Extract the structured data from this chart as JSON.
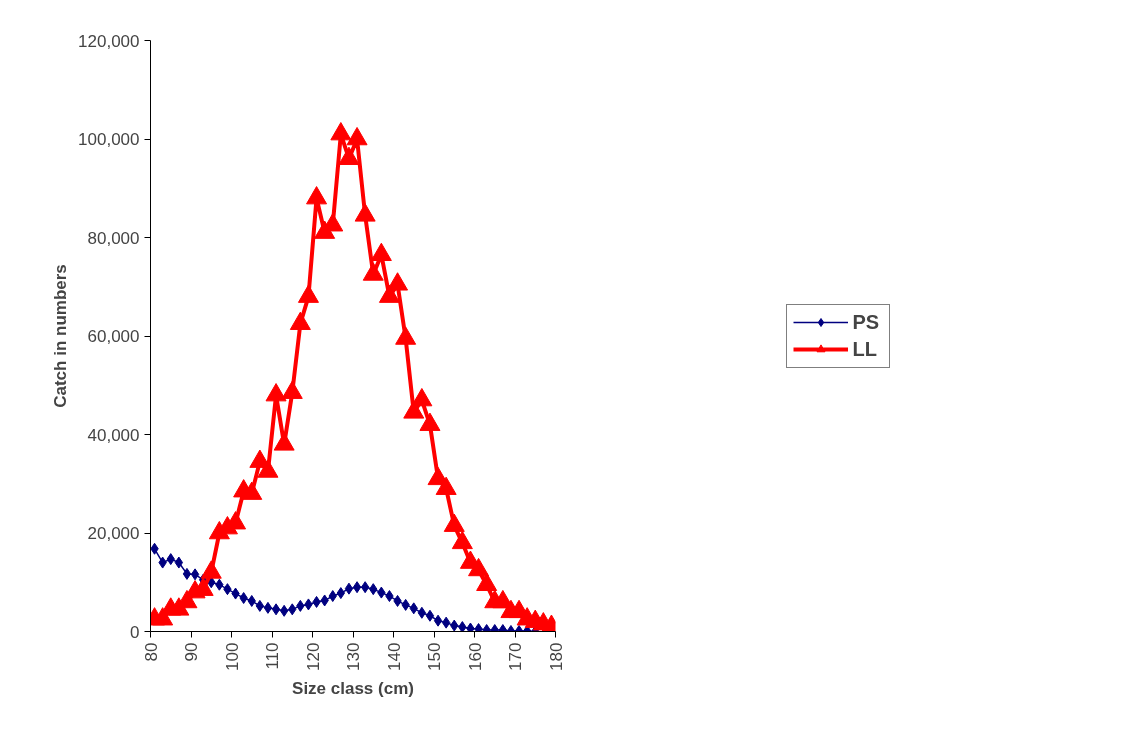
{
  "chart_data": {
    "type": "line",
    "xlabel": "Size class (cm)",
    "ylabel": "Catch in numbers",
    "x": [
      81,
      83,
      85,
      87,
      89,
      91,
      93,
      95,
      97,
      99,
      101,
      103,
      105,
      107,
      109,
      111,
      113,
      115,
      117,
      119,
      121,
      123,
      125,
      127,
      129,
      131,
      133,
      135,
      137,
      139,
      141,
      143,
      145,
      147,
      149,
      151,
      153,
      155,
      157,
      159,
      161,
      163,
      165,
      167,
      169,
      171,
      173,
      175,
      177,
      179
    ],
    "series": [
      {
        "name": "PS",
        "color": "#000080",
        "marker": "diamond",
        "values": [
          16800,
          14000,
          14700,
          14000,
          11700,
          11600,
          10500,
          10000,
          9500,
          8600,
          7700,
          6800,
          6200,
          5200,
          4800,
          4500,
          4200,
          4500,
          5200,
          5500,
          6000,
          6300,
          7200,
          7800,
          8700,
          9000,
          9000,
          8600,
          7900,
          7200,
          6200,
          5400,
          4700,
          3800,
          3200,
          2200,
          1800,
          1200,
          900,
          600,
          500,
          300,
          300,
          300,
          100,
          100,
          100,
          0,
          null,
          null
        ]
      },
      {
        "name": "LL",
        "color": "#ff0000",
        "marker": "triangle",
        "values": [
          2500,
          2500,
          4500,
          4500,
          6000,
          8000,
          8500,
          12000,
          20000,
          21000,
          22000,
          28500,
          28000,
          34500,
          32500,
          48000,
          38000,
          48500,
          62500,
          68000,
          88000,
          81000,
          82500,
          101000,
          96000,
          100000,
          84500,
          72500,
          76500,
          68000,
          70500,
          59500,
          44500,
          47000,
          42000,
          31000,
          29000,
          21500,
          18000,
          14000,
          12500,
          9500,
          6000,
          6000,
          4000,
          4000,
          2500,
          2000,
          1500,
          1000
        ]
      }
    ],
    "xlim": [
      80,
      180
    ],
    "xticks": [
      80,
      90,
      100,
      110,
      120,
      130,
      140,
      150,
      160,
      170,
      180
    ],
    "ylim": [
      0,
      120000
    ],
    "yticks": [
      {
        "value": 0,
        "label": "0"
      },
      {
        "value": 20000,
        "label": "20,000"
      },
      {
        "value": 40000,
        "label": "40,000"
      },
      {
        "value": 60000,
        "label": "60,000"
      },
      {
        "value": 80000,
        "label": "80,000"
      },
      {
        "value": 100000,
        "label": "100,000"
      },
      {
        "value": 120000,
        "label": "120,000"
      }
    ],
    "grid": false,
    "legend": "right",
    "line_style": "solid"
  }
}
